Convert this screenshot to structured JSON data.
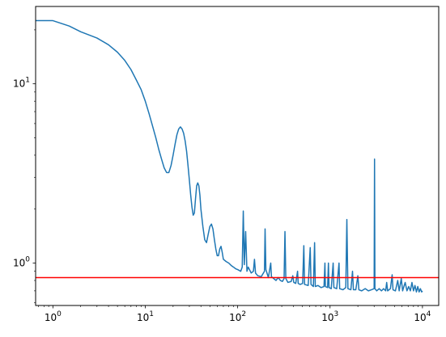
{
  "chart_data": {
    "type": "line",
    "title": "",
    "xlabel": "",
    "ylabel": "",
    "xscale": "log",
    "yscale": "log",
    "xlim": [
      0.65,
      15000
    ],
    "ylim": [
      0.58,
      27
    ],
    "grid": false,
    "legend": "none",
    "x_ticks": [
      {
        "value": 1,
        "base": "10",
        "exp": "0"
      },
      {
        "value": 10,
        "base": "10",
        "exp": "1"
      },
      {
        "value": 100,
        "base": "10",
        "exp": "2"
      },
      {
        "value": 1000,
        "base": "10",
        "exp": "3"
      },
      {
        "value": 10000,
        "base": "10",
        "exp": "4"
      }
    ],
    "y_ticks": [
      {
        "value": 1,
        "base": "10",
        "exp": "0"
      },
      {
        "value": 10,
        "base": "10",
        "exp": "1"
      }
    ],
    "series": [
      {
        "color": "#1f77b4",
        "points": [
          [
            0.5,
            22.5
          ],
          [
            1,
            22.5
          ],
          [
            1.5,
            21.0
          ],
          [
            2,
            19.5
          ],
          [
            3,
            18.0
          ],
          [
            4,
            16.5
          ],
          [
            5,
            15.0
          ],
          [
            6,
            13.5
          ],
          [
            7,
            12.0
          ],
          [
            8,
            10.5
          ],
          [
            9,
            9.3
          ],
          [
            10,
            8.0
          ],
          [
            11,
            6.8
          ],
          [
            12,
            5.8
          ],
          [
            13,
            5.0
          ],
          [
            14,
            4.3
          ],
          [
            15,
            3.8
          ],
          [
            16,
            3.4
          ],
          [
            17,
            3.2
          ],
          [
            18,
            3.2
          ],
          [
            19,
            3.5
          ],
          [
            20,
            4.0
          ],
          [
            21,
            4.6
          ],
          [
            22,
            5.2
          ],
          [
            23,
            5.6
          ],
          [
            24,
            5.75
          ],
          [
            25,
            5.6
          ],
          [
            26,
            5.3
          ],
          [
            27,
            4.8
          ],
          [
            28,
            4.2
          ],
          [
            29,
            3.5
          ],
          [
            30,
            2.9
          ],
          [
            31,
            2.4
          ],
          [
            32,
            2.05
          ],
          [
            33,
            1.85
          ],
          [
            34,
            1.9
          ],
          [
            35,
            2.3
          ],
          [
            36,
            2.7
          ],
          [
            37,
            2.8
          ],
          [
            38,
            2.7
          ],
          [
            39,
            2.4
          ],
          [
            40,
            2.0
          ],
          [
            42,
            1.6
          ],
          [
            44,
            1.35
          ],
          [
            46,
            1.3
          ],
          [
            48,
            1.45
          ],
          [
            50,
            1.6
          ],
          [
            52,
            1.65
          ],
          [
            54,
            1.55
          ],
          [
            56,
            1.35
          ],
          [
            58,
            1.2
          ],
          [
            60,
            1.1
          ],
          [
            62,
            1.1
          ],
          [
            64,
            1.2
          ],
          [
            66,
            1.24
          ],
          [
            68,
            1.15
          ],
          [
            70,
            1.05
          ],
          [
            75,
            1.02
          ],
          [
            80,
            1.0
          ],
          [
            85,
            0.97
          ],
          [
            90,
            0.95
          ],
          [
            95,
            0.93
          ],
          [
            100,
            0.92
          ],
          [
            108,
            0.9
          ],
          [
            112,
            0.95
          ],
          [
            115,
            1.95
          ],
          [
            118,
            0.98
          ],
          [
            122,
            1.5
          ],
          [
            126,
            0.9
          ],
          [
            130,
            0.95
          ],
          [
            140,
            0.88
          ],
          [
            148,
            0.9
          ],
          [
            152,
            1.05
          ],
          [
            156,
            0.88
          ],
          [
            165,
            0.85
          ],
          [
            180,
            0.84
          ],
          [
            195,
            0.9
          ],
          [
            198,
            1.55
          ],
          [
            202,
            0.92
          ],
          [
            215,
            0.83
          ],
          [
            228,
            1.0
          ],
          [
            232,
            0.84
          ],
          [
            245,
            0.82
          ],
          [
            260,
            0.8
          ],
          [
            275,
            0.83
          ],
          [
            290,
            0.8
          ],
          [
            305,
            0.79
          ],
          [
            318,
            0.82
          ],
          [
            325,
            1.5
          ],
          [
            332,
            0.82
          ],
          [
            350,
            0.78
          ],
          [
            380,
            0.79
          ],
          [
            395,
            0.85
          ],
          [
            405,
            0.78
          ],
          [
            425,
            0.77
          ],
          [
            445,
            0.9
          ],
          [
            452,
            0.77
          ],
          [
            475,
            0.76
          ],
          [
            505,
            0.77
          ],
          [
            520,
            1.25
          ],
          [
            530,
            0.76
          ],
          [
            580,
            0.75
          ],
          [
            610,
            1.22
          ],
          [
            622,
            0.76
          ],
          [
            660,
            0.74
          ],
          [
            680,
            1.3
          ],
          [
            692,
            0.74
          ],
          [
            740,
            0.75
          ],
          [
            800,
            0.73
          ],
          [
            860,
            0.74
          ],
          [
            880,
            1.0
          ],
          [
            890,
            0.74
          ],
          [
            940,
            0.73
          ],
          [
            960,
            1.0
          ],
          [
            975,
            0.73
          ],
          [
            1030,
            0.72
          ],
          [
            1080,
            1.0
          ],
          [
            1100,
            0.73
          ],
          [
            1180,
            0.72
          ],
          [
            1250,
            1.0
          ],
          [
            1270,
            0.72
          ],
          [
            1380,
            0.71
          ],
          [
            1480,
            0.73
          ],
          [
            1520,
            1.75
          ],
          [
            1560,
            0.72
          ],
          [
            1680,
            0.71
          ],
          [
            1750,
            0.9
          ],
          [
            1790,
            0.71
          ],
          [
            1900,
            0.71
          ],
          [
            2000,
            0.85
          ],
          [
            2050,
            0.71
          ],
          [
            2200,
            0.7
          ],
          [
            2400,
            0.72
          ],
          [
            2600,
            0.7
          ],
          [
            2800,
            0.71
          ],
          [
            3000,
            0.72
          ],
          [
            3030,
            3.8
          ],
          [
            3060,
            0.72
          ],
          [
            3200,
            0.7
          ],
          [
            3400,
            0.72
          ],
          [
            3600,
            0.7
          ],
          [
            3800,
            0.72
          ],
          [
            4000,
            0.7
          ],
          [
            4100,
            0.78
          ],
          [
            4200,
            0.7
          ],
          [
            4500,
            0.72
          ],
          [
            4700,
            0.86
          ],
          [
            4800,
            0.71
          ],
          [
            5100,
            0.7
          ],
          [
            5400,
            0.8
          ],
          [
            5600,
            0.7
          ],
          [
            5900,
            0.82
          ],
          [
            6100,
            0.7
          ],
          [
            6500,
            0.78
          ],
          [
            6800,
            0.7
          ],
          [
            7100,
            0.74
          ],
          [
            7400,
            0.7
          ],
          [
            7700,
            0.78
          ],
          [
            8000,
            0.7
          ],
          [
            8300,
            0.75
          ],
          [
            8600,
            0.69
          ],
          [
            8900,
            0.74
          ],
          [
            9200,
            0.69
          ],
          [
            9500,
            0.72
          ],
          [
            9800,
            0.69
          ],
          [
            10000,
            0.7
          ]
        ]
      }
    ],
    "hlines": [
      {
        "y": 0.83,
        "color": "#ff0000"
      }
    ]
  }
}
